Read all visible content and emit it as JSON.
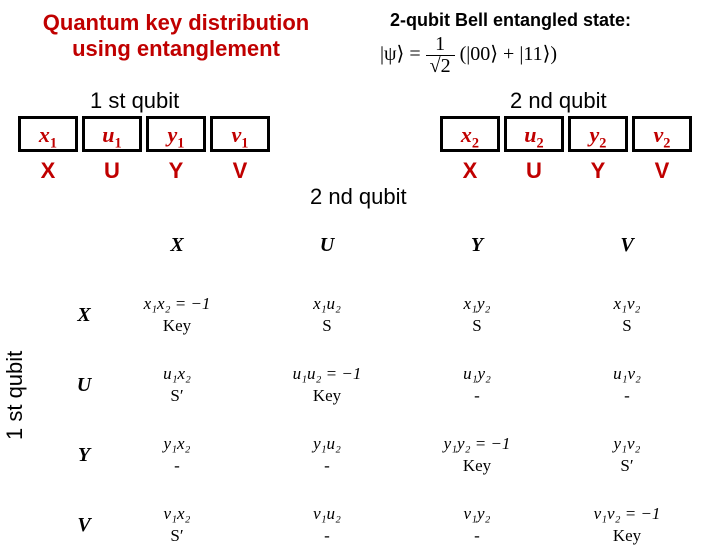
{
  "title_left": "Quantum key distribution using entanglement",
  "title_right": "2-qubit Bell entangled state:",
  "bell_state": {
    "psi": "|ψ⟩ =",
    "over": "1",
    "under": "√2",
    "terms": "(|00⟩ + |11⟩)"
  },
  "labels": {
    "q1": "1 st qubit",
    "q2a": "2 nd qubit",
    "q2b": "2 nd qubit",
    "yaxis": "1 st qubit"
  },
  "cells_left": [
    [
      "x",
      "1"
    ],
    [
      "u",
      "1"
    ],
    [
      "y",
      "1"
    ],
    [
      "v",
      "1"
    ]
  ],
  "big_left": [
    "X",
    "U",
    "Y",
    "V"
  ],
  "cells_right": [
    [
      "x",
      "2"
    ],
    [
      "u",
      "2"
    ],
    [
      "y",
      "2"
    ],
    [
      "v",
      "2"
    ]
  ],
  "big_right": [
    "X",
    "U",
    "Y",
    "V"
  ],
  "matrix": {
    "col_headers": [
      "X",
      "U",
      "Y",
      "V"
    ],
    "row_headers": [
      "X",
      "U",
      "Y",
      "V"
    ],
    "rows": [
      [
        [
          "x₁x₂ = −1",
          "Key"
        ],
        [
          "x₁u₂",
          "S"
        ],
        [
          "x₁y₂",
          "S"
        ],
        [
          "x₁v₂",
          "S"
        ]
      ],
      [
        [
          "u₁x₂",
          "S′"
        ],
        [
          "u₁u₂ = −1",
          "Key"
        ],
        [
          "u₁y₂",
          "-"
        ],
        [
          "u₁v₂",
          "-"
        ]
      ],
      [
        [
          "y₁x₂",
          "-"
        ],
        [
          "y₁u₂",
          "-"
        ],
        [
          "y₁y₂ = −1",
          "Key"
        ],
        [
          "y₁v₂",
          "S′"
        ]
      ],
      [
        [
          "v₁x₂",
          "S′"
        ],
        [
          "v₁u₂",
          "-"
        ],
        [
          "v₁y₂",
          "-"
        ],
        [
          "v₁v₂ = −1",
          "Key"
        ]
      ]
    ]
  },
  "styles": {
    "accent": "#c00000",
    "border": "#000000",
    "background": "#ffffff",
    "title_fontsize": 22,
    "cell_border_width": 3
  }
}
